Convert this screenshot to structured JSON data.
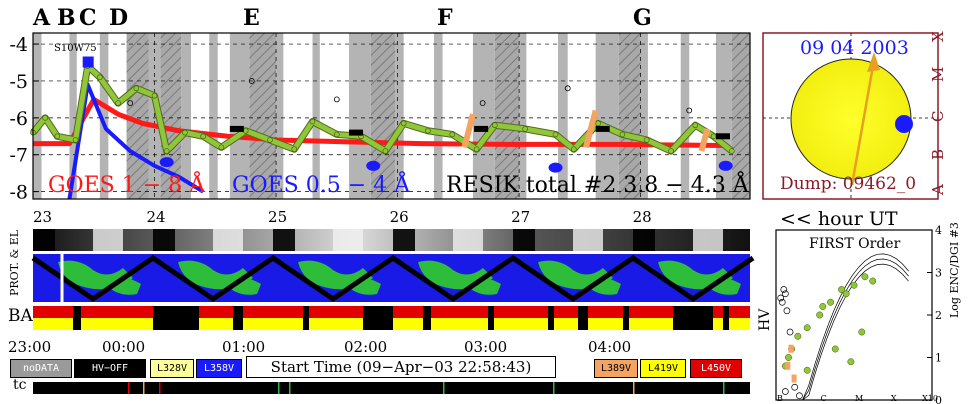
{
  "chart_data": {
    "type": "line",
    "panel_letters": [
      "A",
      "B",
      "C",
      "D",
      "E",
      "F",
      "G"
    ],
    "y_axis": {
      "ticks": [
        "-4",
        "-5",
        "-6",
        "-7",
        "-8"
      ],
      "ylim": [
        -8.2,
        -3.7
      ]
    },
    "x_axis": {
      "ticks": [
        "23",
        "24",
        "25",
        "26",
        "27",
        "28"
      ],
      "unit_label": "<< hour UT"
    },
    "gridlines": true,
    "flare_label": "S10W75",
    "series": [
      {
        "name": "GOES 1 − 8 Å",
        "color": "#ff1a1a",
        "x": [
          23.0,
          23.3,
          23.5,
          23.7,
          23.9,
          24.2,
          24.6,
          25.0,
          25.6,
          26.2,
          27.0,
          27.8,
          28.7
        ],
        "y": [
          -6.7,
          -6.7,
          -5.5,
          -5.9,
          -6.15,
          -6.35,
          -6.5,
          -6.6,
          -6.65,
          -6.7,
          -6.72,
          -6.72,
          -6.75
        ]
      },
      {
        "name": "GOES 0.5 − 4 Å",
        "color": "#1a1aff",
        "x": [
          23.3,
          23.45,
          23.6,
          23.8,
          24.0,
          24.2,
          24.4
        ],
        "y": [
          -8.2,
          -5.1,
          -6.3,
          -6.9,
          -7.3,
          -7.6,
          -8.0
        ]
      },
      {
        "name": "RESIK total #2  3.8 − 4.3 Å",
        "color": "#8fc63a",
        "x": [
          23.0,
          23.1,
          23.2,
          23.35,
          23.45,
          23.55,
          23.7,
          23.85,
          24.0,
          24.1,
          24.25,
          24.4,
          24.55,
          24.75,
          24.95,
          25.15,
          25.3,
          25.5,
          25.7,
          25.9,
          26.05,
          26.25,
          26.45,
          26.65,
          26.8,
          27.05,
          27.3,
          27.45,
          27.65,
          27.85,
          28.05,
          28.25,
          28.45,
          28.6,
          28.75
        ],
        "y": [
          -6.4,
          -6.0,
          -6.5,
          -6.6,
          -4.6,
          -4.9,
          -5.6,
          -5.2,
          -5.4,
          -6.9,
          -6.4,
          -6.5,
          -6.8,
          -6.35,
          -6.6,
          -6.85,
          -6.1,
          -6.45,
          -6.5,
          -6.9,
          -6.15,
          -6.35,
          -6.45,
          -6.85,
          -6.2,
          -6.3,
          -6.45,
          -6.85,
          -6.15,
          -6.45,
          -6.6,
          -6.9,
          -6.2,
          -6.5,
          -6.9
        ]
      }
    ]
  },
  "labels": {
    "start_time": "Start Time (09−Apr−03 22:58:43)",
    "date": "09 04 2003",
    "dump": "Dump: 09462_0",
    "first_order": "FIRST Order",
    "ylabel_right": "Log ENC/DGI #3",
    "ylabel_prot": "PROT. & EL",
    "ylabel_ba": "BA",
    "ylabel_tc": "tc",
    "ylabel_hv": "HV"
  },
  "hour_ticks": [
    "23:00",
    "00:00",
    "01:00",
    "02:00",
    "03:00",
    "04:00"
  ],
  "legend_boxes": [
    {
      "text": "noDATA",
      "color": "#9a9a9a"
    },
    {
      "text": "HV−OFF",
      "color": "#000000"
    },
    {
      "text": "L328V",
      "color": "#ffff99"
    },
    {
      "text": "L358V",
      "color": "#1a1aff"
    },
    {
      "text": "L389V",
      "color": "#f4a460"
    },
    {
      "text": "L419V",
      "color": "#ffff00"
    },
    {
      "text": "L450V",
      "color": "#e00000"
    }
  ],
  "class_letters": [
    "A",
    "B",
    "C",
    "M",
    "X"
  ],
  "scatter_panel": {
    "y_ticks": [
      "4",
      "3",
      "2",
      "1",
      "0"
    ],
    "x_labels": [
      "B",
      "C",
      "M",
      "X",
      "X10"
    ]
  }
}
